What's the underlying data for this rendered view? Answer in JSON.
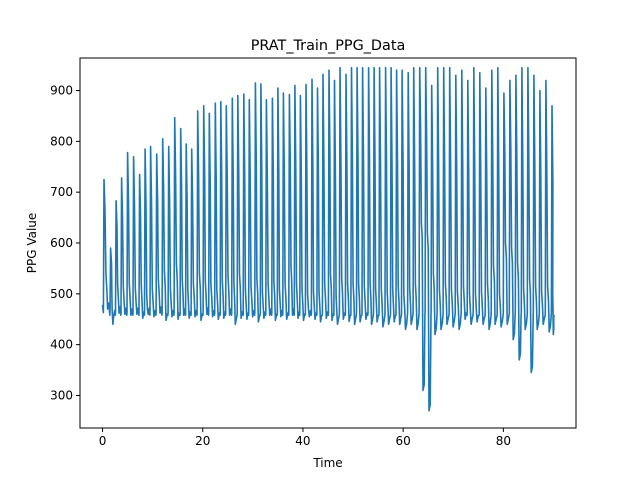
{
  "chart_data": {
    "type": "line",
    "title": "PRAT_Train_PPG_Data",
    "xlabel": "Time",
    "ylabel": "PPG Value",
    "xlim": [
      -4.5,
      94.5
    ],
    "ylim": [
      236,
      964
    ],
    "xticks": [
      0,
      20,
      40,
      60,
      80
    ],
    "yticks": [
      300,
      400,
      500,
      600,
      700,
      800,
      900
    ],
    "grid": false,
    "legend": "none",
    "series": [
      {
        "color": "#1f77b4",
        "baseline": 458,
        "peak_times": [
          0.3,
          1.6,
          2.7,
          3.8,
          5.0,
          6.2,
          7.4,
          8.5,
          9.6,
          10.8,
          12.0,
          13.2,
          14.4,
          15.6,
          16.7,
          17.8,
          19.0,
          20.2,
          21.3,
          22.5,
          23.6,
          24.7,
          25.9,
          27.0,
          28.2,
          29.3,
          30.5,
          31.6,
          32.7,
          33.9,
          35.0,
          36.1,
          37.3,
          38.4,
          39.5,
          40.6,
          41.8,
          42.9,
          44.0,
          45.2,
          46.3,
          47.4,
          48.6,
          49.7,
          50.8,
          51.9,
          53.1,
          54.2,
          55.3,
          56.5,
          57.6,
          58.7,
          59.8,
          61.0,
          62.1,
          63.3,
          64.5,
          65.7,
          66.9,
          68.1,
          69.3,
          70.5,
          71.7,
          72.9,
          74.1,
          75.3,
          76.5,
          77.7,
          78.9,
          80.1,
          81.3,
          82.5,
          83.7,
          84.9,
          86.1,
          87.3,
          88.5,
          89.7
        ],
        "peak_values": [
          725,
          590,
          683,
          728,
          778,
          770,
          735,
          785,
          790,
          775,
          805,
          790,
          847,
          825,
          795,
          785,
          860,
          870,
          855,
          875,
          878,
          870,
          885,
          890,
          893,
          882,
          915,
          913,
          882,
          885,
          905,
          895,
          892,
          910,
          890,
          912,
          922,
          905,
          932,
          940,
          920,
          945,
          932,
          945,
          945,
          945,
          945,
          945,
          945,
          945,
          945,
          940,
          940,
          935,
          945,
          945,
          945,
          910,
          945,
          945,
          945,
          930,
          940,
          920,
          945,
          935,
          905,
          940,
          945,
          895,
          920,
          930,
          945,
          945,
          930,
          900,
          920,
          870
        ],
        "trough_values": [
          470,
          455,
          462,
          460,
          458,
          460,
          452,
          460,
          455,
          462,
          448,
          455,
          450,
          458,
          452,
          455,
          448,
          460,
          455,
          450,
          452,
          458,
          440,
          452,
          450,
          455,
          445,
          452,
          458,
          448,
          455,
          450,
          458,
          452,
          448,
          455,
          450,
          445,
          452,
          448,
          440,
          450,
          446,
          440,
          445,
          450,
          440,
          445,
          435,
          440,
          445,
          440,
          430,
          440,
          430,
          310,
          270,
          420,
          430,
          440,
          435,
          430,
          450,
          440,
          445,
          440,
          430,
          440,
          435,
          440,
          410,
          370,
          430,
          345,
          430,
          440,
          425,
          420
        ],
        "dicrotic_values": [
          540,
          470,
          520,
          515,
          520,
          512,
          520,
          500,
          510,
          530,
          545,
          510,
          560,
          530,
          510,
          520,
          540,
          525,
          520,
          510,
          525,
          535,
          520,
          540,
          510,
          515,
          530,
          505,
          520,
          525,
          510,
          520,
          555,
          520,
          510,
          500,
          505,
          505,
          520,
          540,
          495,
          530,
          520,
          520,
          520,
          515,
          520,
          510,
          510,
          505,
          510,
          515,
          500,
          510,
          520,
          640,
          620,
          540,
          510,
          520,
          510,
          505,
          515,
          500,
          500,
          505,
          520,
          555,
          500,
          600,
          590,
          560,
          510,
          530,
          515,
          505,
          515,
          500
        ]
      }
    ]
  }
}
